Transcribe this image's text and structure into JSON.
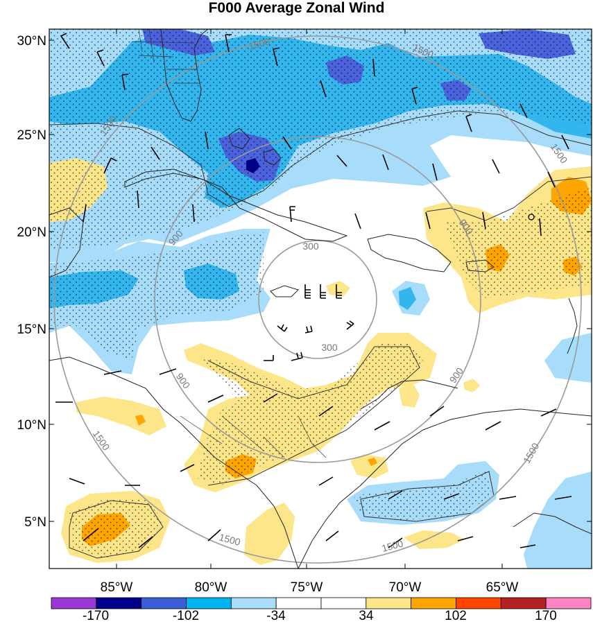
{
  "title": "F000 Average Zonal Wind",
  "colors": {
    "frame": "#000000",
    "ring": "#9a9a9a",
    "coast": "#222222",
    "barb": "#000000"
  },
  "y_axis": {
    "ticks": [
      "30°N",
      "25°N",
      "20°N",
      "15°N",
      "10°N",
      "5°N"
    ]
  },
  "x_axis": {
    "ticks": [
      "85°W",
      "80°W",
      "75°W",
      "70°W",
      "65°W"
    ]
  },
  "range_rings": {
    "labels": [
      "300",
      "300",
      "900",
      "900",
      "900",
      "900",
      "1500",
      "1500",
      "1500",
      "1500",
      "1500",
      "1500"
    ]
  },
  "colorbar": {
    "labels": [
      "-170",
      "-102",
      "-34",
      "34",
      "102",
      "170"
    ],
    "colors": [
      "#9b37d6",
      "#00008b",
      "#3a5ed8",
      "#00b4f0",
      "#a7dcfa",
      "#ffffff",
      "#ffffff",
      "#fde68a",
      "#ffa500",
      "#ff4500",
      "#b22222",
      "#ff83c2"
    ]
  },
  "shading": {
    "negative_colors": [
      "#a7dcfa",
      "#33b6ee",
      "#4a63dc",
      "#00008b"
    ],
    "positive_colors": [
      "#fde68a",
      "#ffa500"
    ]
  },
  "overlays": {
    "stippling": "dotted",
    "wind_barbs": "present"
  }
}
